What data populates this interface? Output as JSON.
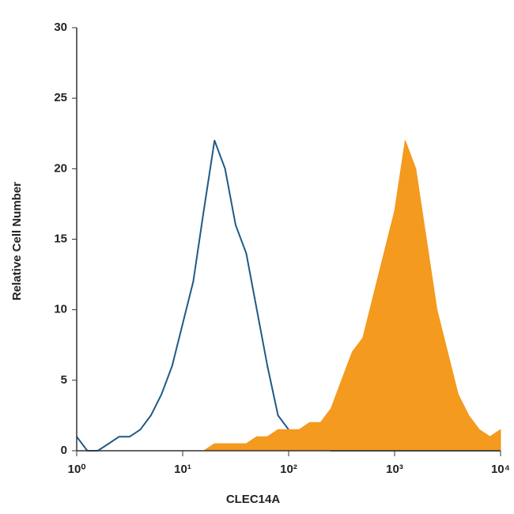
{
  "chart_data": {
    "type": "histogram-line",
    "xlabel": "CLEC14A",
    "ylabel": "Relative Cell Number",
    "xlog": true,
    "x": [
      1,
      1.26,
      1.58,
      2,
      2.51,
      3.16,
      3.98,
      5.01,
      6.31,
      7.94,
      10,
      12.6,
      15.8,
      20,
      25.1,
      31.6,
      39.8,
      50.1,
      63.1,
      79.4,
      100,
      126,
      158,
      200,
      251,
      316,
      398,
      501,
      631,
      794,
      1000,
      1259,
      1585,
      1995,
      2512,
      3162,
      3981,
      5012,
      6310,
      7943,
      10000
    ],
    "series": [
      {
        "color": "#1f5a85",
        "fill": false,
        "values": [
          1,
          0,
          0,
          0.5,
          1,
          1,
          1.5,
          2.5,
          4,
          6,
          9,
          12,
          17,
          22,
          20,
          16,
          14,
          10,
          6,
          2.5,
          1.5,
          1,
          0.5,
          0.5,
          0,
          0,
          0,
          0,
          0,
          0,
          0,
          0,
          0,
          0,
          0,
          0,
          0,
          0,
          0,
          0,
          0
        ]
      },
      {
        "color": "#f39a1f",
        "fill": true,
        "values": [
          0,
          0,
          0,
          0,
          0,
          0,
          0,
          0,
          0,
          0,
          0,
          0,
          0,
          0.5,
          0.5,
          0.5,
          0.5,
          1,
          1,
          1.5,
          1.5,
          1.5,
          2,
          2,
          3,
          5,
          7,
          8,
          11,
          14,
          17,
          22,
          20,
          15,
          10,
          7,
          4,
          2.5,
          1.5,
          1,
          1.5
        ]
      }
    ],
    "xlim": [
      1,
      10000
    ],
    "xticks": [
      {
        "value": 1,
        "label": "10⁰"
      },
      {
        "value": 10,
        "label": "10¹"
      },
      {
        "value": 100,
        "label": "10²"
      },
      {
        "value": 1000,
        "label": "10³"
      },
      {
        "value": 10000,
        "label": "10⁴"
      }
    ],
    "ylim": [
      0,
      30
    ],
    "yticks": [
      0,
      5,
      10,
      15,
      20,
      25,
      30
    ]
  }
}
